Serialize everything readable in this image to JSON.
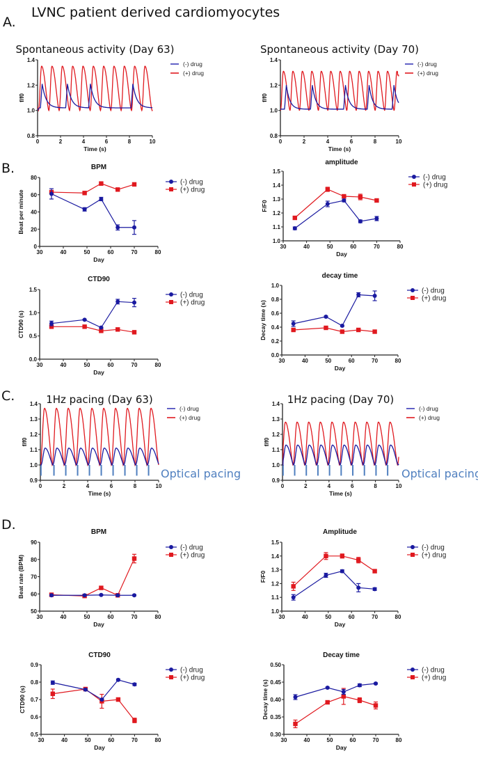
{
  "figure": {
    "main_title": "LVNC patient derived cardiomyocytes",
    "panel_labels": [
      "A.",
      "B.",
      "C.",
      "D."
    ],
    "optical_pacing_label": "Optical pacing"
  },
  "colors": {
    "minus_drug": "#1a1aa0",
    "plus_drug": "#e0191f",
    "pacing": "#4f7fbf"
  },
  "chart_data": [
    {
      "id": "A-left",
      "type": "line",
      "title": "Spontaneous activity (Day 63)",
      "xlabel": "Time (s)",
      "ylabel": "f/f0",
      "xlim": [
        0,
        10
      ],
      "ylim": [
        0.8,
        1.4
      ],
      "xticks": [
        "0",
        "2",
        "4",
        "6",
        "8",
        "10"
      ],
      "yticks": [
        "0.8",
        "1.0",
        "1.2",
        "1.4"
      ],
      "legend": [
        "(-) drug",
        "(+) drug"
      ],
      "legend_position": "top-right",
      "series": [
        {
          "name": "(-) drug",
          "baseline": 1.02,
          "peaks_t": [
            0.4,
            2.6,
            4.6,
            8.3
          ],
          "peak": 1.21,
          "decay": 0.35
        },
        {
          "name": "(+) drug",
          "baseline": 1.0,
          "period": 0.9,
          "first_peak": 0.35,
          "peak": 1.35,
          "end_value": 1.22
        }
      ]
    },
    {
      "id": "A-right",
      "type": "line",
      "title": "Spontaneous activity (Day 70)",
      "xlabel": "Time (s)",
      "ylabel": "f/f0",
      "xlim": [
        0,
        10
      ],
      "ylim": [
        0.8,
        1.4
      ],
      "xticks": [
        "0",
        "2",
        "4",
        "6",
        "8",
        "10"
      ],
      "yticks": [
        "0.8",
        "1.0",
        "1.2",
        "1.4"
      ],
      "legend": [
        "(-) drug",
        "(+) drug"
      ],
      "legend_position": "top-right",
      "series": [
        {
          "name": "(-) drug",
          "baseline": 1.01,
          "peaks_t": [
            0.5,
            2.7,
            5.5,
            7.5,
            9.6
          ],
          "peak": 1.2,
          "decay": 0.3
        },
        {
          "name": "(+) drug",
          "baseline": 1.0,
          "period": 0.8,
          "first_peak": 0.25,
          "peak": 1.31,
          "end_value": 1.28
        }
      ]
    },
    {
      "id": "B-bpm",
      "type": "line",
      "title": "BPM",
      "xlabel": "Day",
      "ylabel": "Beat per minute",
      "xlim": [
        30,
        80
      ],
      "ylim": [
        0,
        80
      ],
      "xticks": [
        "30",
        "40",
        "50",
        "60",
        "70",
        "80"
      ],
      "yticks": [
        "0",
        "20",
        "40",
        "60",
        "80"
      ],
      "x": [
        35,
        49,
        56,
        63,
        70
      ],
      "legend_position": "top-right",
      "series": [
        {
          "name": "(-) drug",
          "values": [
            61,
            43,
            55,
            22,
            22
          ],
          "errors": [
            6,
            2,
            2,
            3,
            8
          ]
        },
        {
          "name": "(+) drug",
          "values": [
            63,
            62,
            73,
            66,
            72
          ],
          "errors": [
            2,
            1,
            2,
            1,
            1
          ]
        }
      ]
    },
    {
      "id": "B-amplitude",
      "type": "line",
      "title": "amplitude",
      "xlabel": "Day",
      "ylabel": "F/F0",
      "xlim": [
        30,
        80
      ],
      "ylim": [
        1.0,
        1.5
      ],
      "xticks": [
        "30",
        "40",
        "50",
        "60",
        "70",
        "80"
      ],
      "yticks": [
        "1.0",
        "1.1",
        "1.2",
        "1.3",
        "1.4",
        "1.5"
      ],
      "x": [
        35,
        49,
        56,
        63,
        70
      ],
      "legend_position": "top-right",
      "series": [
        {
          "name": "(-) drug",
          "values": [
            1.09,
            1.265,
            1.29,
            1.14,
            1.16
          ],
          "errors": [
            0.01,
            0.02,
            0.01,
            0.01,
            0.015
          ]
        },
        {
          "name": "(+) drug",
          "values": [
            1.165,
            1.37,
            1.32,
            1.315,
            1.29
          ],
          "errors": [
            0.01,
            0.015,
            0.01,
            0.02,
            0.01
          ]
        }
      ]
    },
    {
      "id": "B-ctd90",
      "type": "line",
      "title": "CTD90",
      "xlabel": "Day",
      "ylabel": "CTD90 (s)",
      "xlim": [
        30,
        80
      ],
      "ylim": [
        0.0,
        1.5
      ],
      "xticks": [
        "30",
        "40",
        "50",
        "60",
        "70",
        "80"
      ],
      "yticks": [
        "0.0",
        "0.5",
        "1.0",
        "1.5"
      ],
      "x": [
        35,
        49,
        56,
        63,
        70
      ],
      "legend_position": "top-right",
      "series": [
        {
          "name": "(-) drug",
          "values": [
            0.77,
            0.85,
            0.68,
            1.24,
            1.22
          ],
          "errors": [
            0.05,
            0.01,
            0.01,
            0.05,
            0.09
          ]
        },
        {
          "name": "(+) drug",
          "values": [
            0.7,
            0.7,
            0.61,
            0.64,
            0.58
          ],
          "errors": [
            0.02,
            0.01,
            0.01,
            0.01,
            0.01
          ]
        }
      ]
    },
    {
      "id": "B-decay",
      "type": "line",
      "title": "decay time",
      "xlabel": "Day",
      "ylabel": "Decay time (s)",
      "xlim": [
        30,
        80
      ],
      "ylim": [
        0.0,
        1.0
      ],
      "xticks": [
        "30",
        "40",
        "50",
        "60",
        "70",
        "80"
      ],
      "yticks": [
        "0.0",
        "0.2",
        "0.4",
        "0.6",
        "0.8",
        "1.0"
      ],
      "x": [
        35,
        49,
        56,
        63,
        70
      ],
      "legend_position": "top-right",
      "series": [
        {
          "name": "(-) drug",
          "values": [
            0.45,
            0.55,
            0.42,
            0.865,
            0.85
          ],
          "errors": [
            0.04,
            0.01,
            0.01,
            0.03,
            0.07
          ]
        },
        {
          "name": "(+) drug",
          "values": [
            0.36,
            0.39,
            0.335,
            0.36,
            0.335
          ],
          "errors": [
            0.01,
            0.01,
            0.01,
            0.01,
            0.01
          ]
        }
      ]
    },
    {
      "id": "C-left",
      "type": "line",
      "title": "1Hz pacing (Day 63)",
      "xlabel": "Time (s)",
      "ylabel": "f/f0",
      "xlim": [
        0,
        10
      ],
      "ylim": [
        0.9,
        1.4
      ],
      "xticks": [
        "0",
        "2",
        "4",
        "6",
        "8",
        "10"
      ],
      "yticks": [
        "0.9",
        "1.0",
        "1.1",
        "1.2",
        "1.3",
        "1.4"
      ],
      "legend": [
        "(-) drug",
        "(+) drug"
      ],
      "legend_position": "top-right",
      "pacing_times": [
        0.05,
        1.15,
        2.15,
        3.15,
        4.15,
        5.15,
        6.15,
        7.15,
        8.15,
        9.15
      ],
      "series": [
        {
          "name": "(-) drug",
          "baseline": 1.0,
          "peak": 1.11,
          "period": 1.0,
          "first_peak": 0.4
        },
        {
          "name": "(+) drug",
          "baseline": 1.0,
          "peak": 1.37,
          "period": 1.0,
          "first_peak": 0.35
        }
      ]
    },
    {
      "id": "C-right",
      "type": "line",
      "title": "1Hz pacing (Day 70)",
      "xlabel": "Time (s)",
      "ylabel": "f/f0",
      "xlim": [
        0,
        10
      ],
      "ylim": [
        0.9,
        1.4
      ],
      "xticks": [
        "0",
        "2",
        "4",
        "6",
        "8",
        "10"
      ],
      "yticks": [
        "0.9",
        "1.0",
        "1.1",
        "1.2",
        "1.3",
        "1.4"
      ],
      "legend": [
        "(-) drug",
        "(+) drug"
      ],
      "legend_position": "top-right",
      "pacing_times": [
        0.05,
        1.05,
        2.05,
        3.05,
        4.05,
        5.05,
        6.05,
        7.05,
        8.05,
        9.05
      ],
      "series": [
        {
          "name": "(-) drug",
          "baseline": 1.0,
          "peak": 1.13,
          "period": 1.0,
          "first_peak": 0.3
        },
        {
          "name": "(+) drug",
          "baseline": 1.0,
          "peak": 1.28,
          "period": 1.0,
          "first_peak": 0.25
        }
      ]
    },
    {
      "id": "D-bpm",
      "type": "line",
      "title": "BPM",
      "xlabel": "Day",
      "ylabel": "Beat rate (BPM)",
      "xlim": [
        30,
        80
      ],
      "ylim": [
        50,
        90
      ],
      "xticks": [
        "30",
        "40",
        "50",
        "60",
        "70",
        "80"
      ],
      "yticks": [
        "50",
        "60",
        "70",
        "80",
        "90"
      ],
      "x": [
        35,
        49,
        56,
        63,
        70
      ],
      "legend_position": "top-right",
      "series": [
        {
          "name": "(-) drug",
          "values": [
            59.2,
            59.2,
            59.4,
            59.2,
            59.2
          ],
          "errors": [
            0.3,
            0.3,
            0.3,
            0.3,
            0.3
          ]
        },
        {
          "name": "(+) drug",
          "values": [
            59.5,
            58.8,
            63.5,
            59.2,
            80.5
          ],
          "errors": [
            0.3,
            0.3,
            0.5,
            0.3,
            2.5
          ]
        }
      ]
    },
    {
      "id": "D-amplitude",
      "type": "line",
      "title": "Amplitude",
      "xlabel": "Day",
      "ylabel": "F/F0",
      "xlim": [
        30,
        80
      ],
      "ylim": [
        1.0,
        1.5
      ],
      "xticks": [
        "30",
        "40",
        "50",
        "60",
        "70",
        "80"
      ],
      "yticks": [
        "1.0",
        "1.1",
        "1.2",
        "1.3",
        "1.4",
        "1.5"
      ],
      "x": [
        35,
        49,
        56,
        63,
        70
      ],
      "legend_position": "top-right",
      "series": [
        {
          "name": "(-) drug",
          "values": [
            1.1,
            1.26,
            1.29,
            1.17,
            1.16
          ],
          "errors": [
            0.02,
            0.015,
            0.01,
            0.03,
            0.01
          ]
        },
        {
          "name": "(+) drug",
          "values": [
            1.18,
            1.4,
            1.4,
            1.37,
            1.29
          ],
          "errors": [
            0.03,
            0.025,
            0.015,
            0.02,
            0.01
          ]
        }
      ]
    },
    {
      "id": "D-ctd90",
      "type": "line",
      "title": "CTD90",
      "xlabel": "Day",
      "ylabel": "CTD90 (s)",
      "xlim": [
        30,
        80
      ],
      "ylim": [
        0.5,
        0.9
      ],
      "xticks": [
        "30",
        "40",
        "50",
        "60",
        "70",
        "80"
      ],
      "yticks": [
        "0.5",
        "0.6",
        "0.7",
        "0.8",
        "0.9"
      ],
      "x": [
        35,
        49,
        56,
        63,
        70
      ],
      "legend_position": "top-right",
      "series": [
        {
          "name": "(-) drug",
          "values": [
            0.797,
            0.757,
            0.7,
            0.813,
            0.787
          ],
          "errors": [
            0.01,
            0.005,
            0.005,
            0.005,
            0.007
          ]
        },
        {
          "name": "(+) drug",
          "values": [
            0.733,
            0.76,
            0.69,
            0.7,
            0.58
          ],
          "errors": [
            0.027,
            0.01,
            0.04,
            0.01,
            0.013
          ]
        }
      ]
    },
    {
      "id": "D-decay",
      "type": "line",
      "title": "Decay time",
      "xlabel": "Day",
      "ylabel": "Decay time (s)",
      "xlim": [
        30,
        80
      ],
      "ylim": [
        0.3,
        0.5
      ],
      "xticks": [
        "30",
        "40",
        "50",
        "60",
        "70",
        "80"
      ],
      "yticks": [
        "0.30",
        "0.35",
        "0.40",
        "0.45",
        "0.50"
      ],
      "x": [
        35,
        49,
        56,
        63,
        70
      ],
      "legend_position": "top-right",
      "series": [
        {
          "name": "(-) drug",
          "values": [
            0.407,
            0.434,
            0.422,
            0.441,
            0.446
          ],
          "errors": [
            0.007,
            0.002,
            0.007,
            0.004,
            0.002
          ]
        },
        {
          "name": "(+) drug",
          "values": [
            0.33,
            0.392,
            0.409,
            0.398,
            0.383
          ],
          "errors": [
            0.011,
            0.004,
            0.023,
            0.007,
            0.01
          ]
        }
      ]
    }
  ]
}
